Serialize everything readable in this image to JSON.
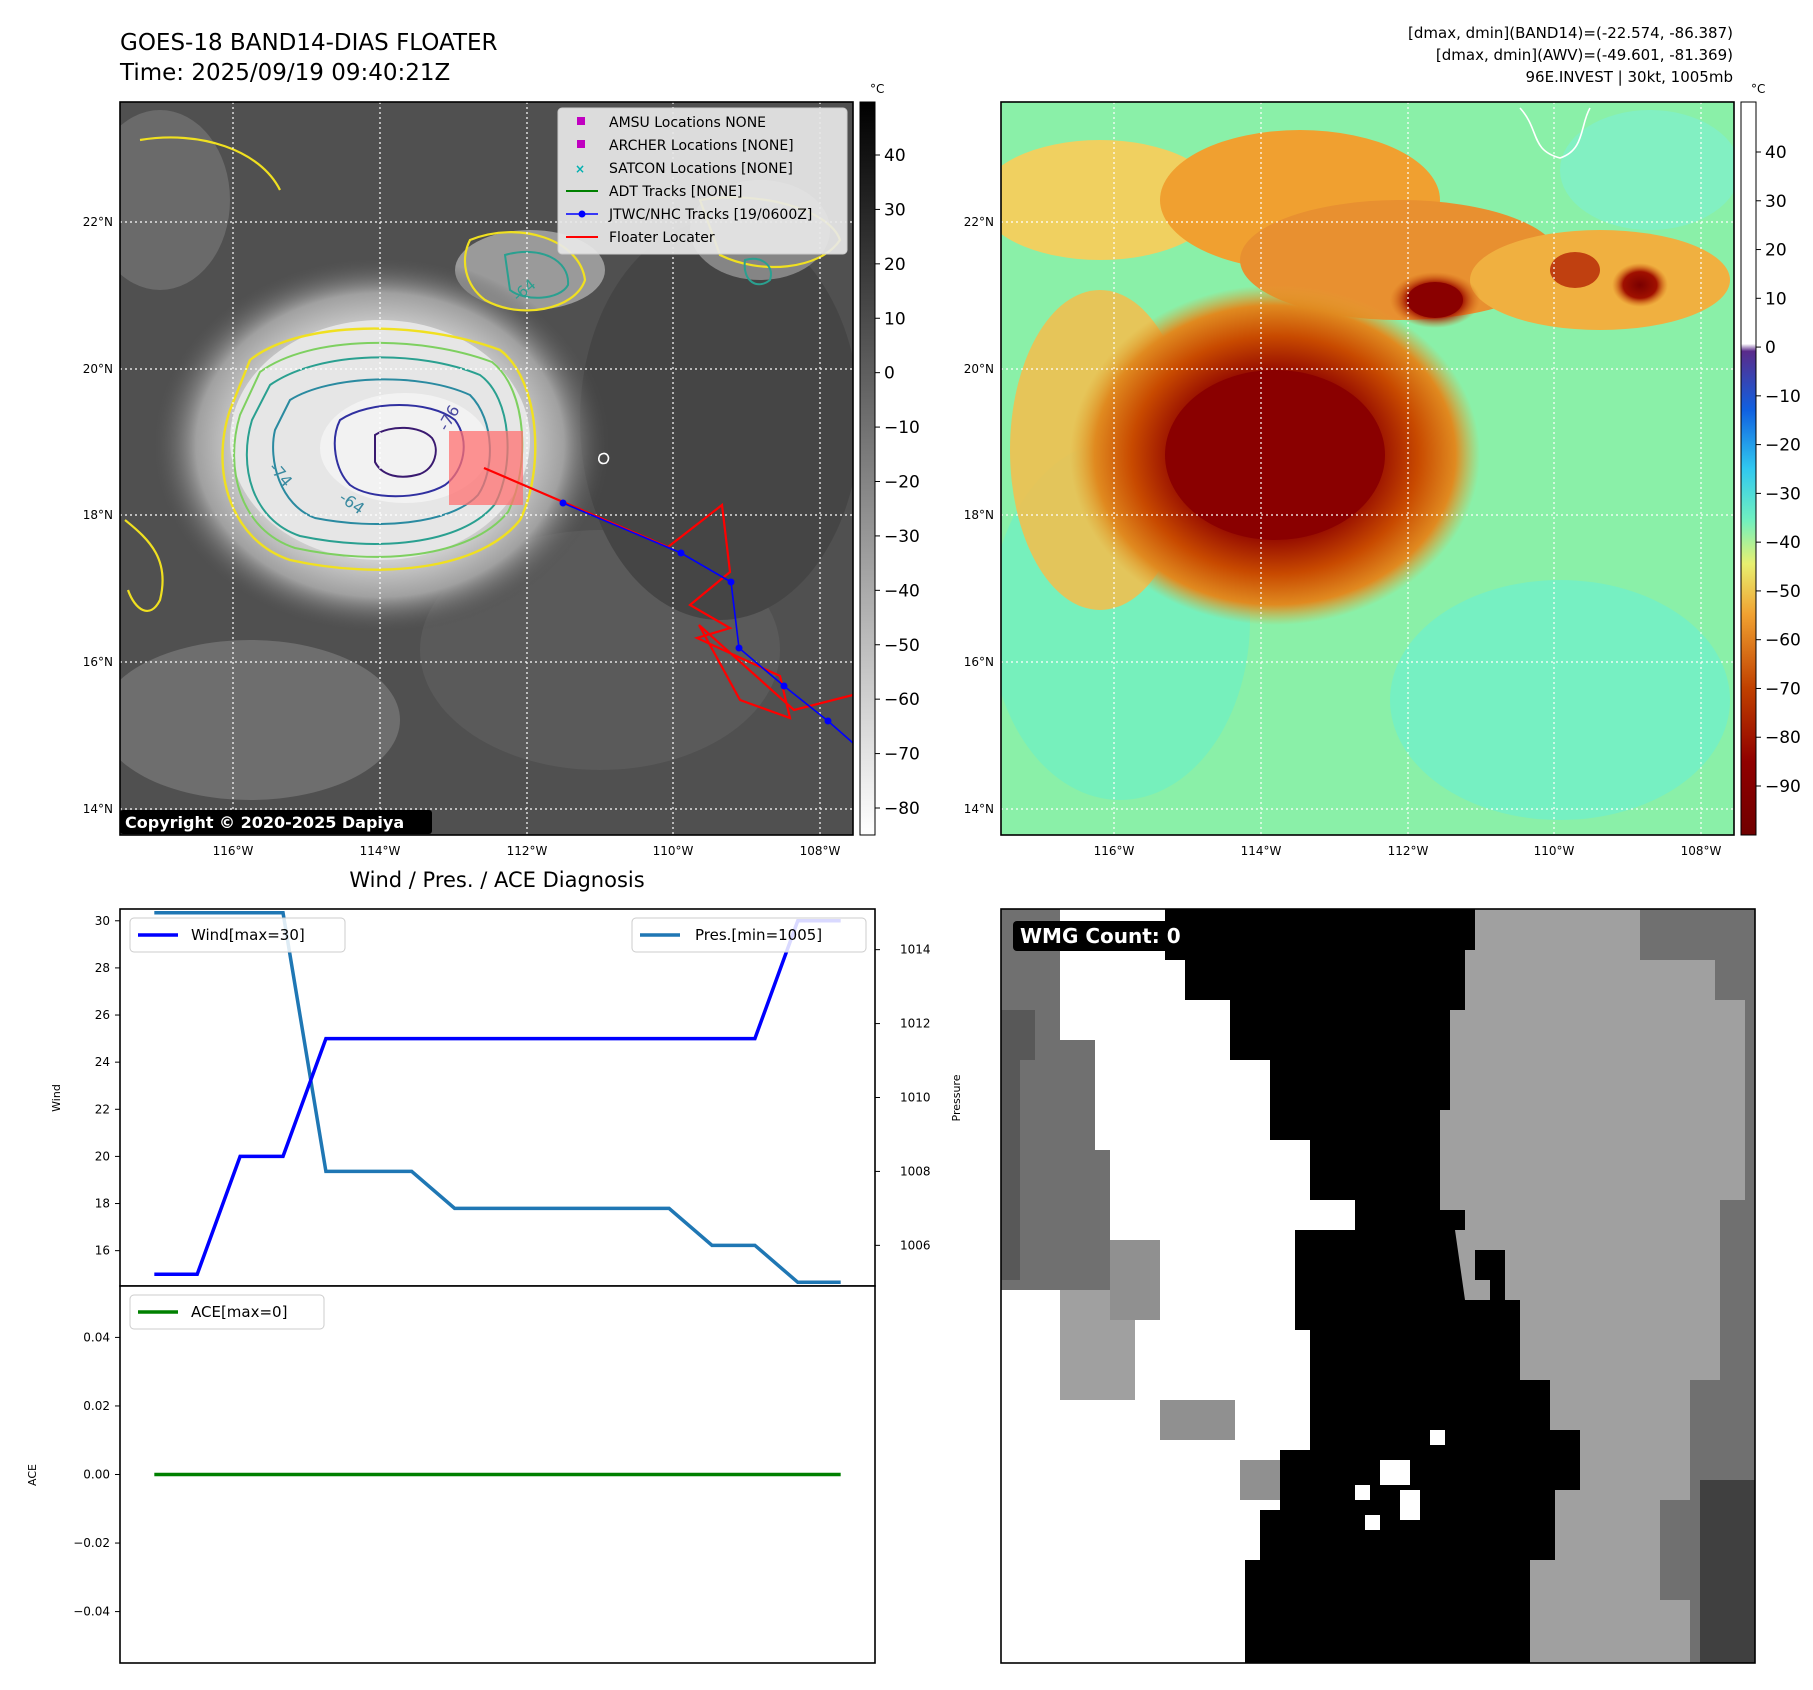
{
  "header": {
    "title_line1": "GOES-18 BAND14-DIAS FLOATER",
    "title_line2": "Time: 2025/09/19 09:40:21Z",
    "info_line1": "[dmax, dmin](BAND14)=(-22.574, -86.387)",
    "info_line2": "[dmax, dmin](AWV)=(-49.601, -81.369)",
    "info_line3": "96E.INVEST | 30kt, 1005mb"
  },
  "map_axes": {
    "lat_labels": [
      "22°N",
      "20°N",
      "18°N",
      "16°N",
      "14°N"
    ],
    "lon_labels": [
      "116°W",
      "114°W",
      "112°W",
      "110°W",
      "108°W"
    ]
  },
  "ir_panel": {
    "copyright": "Copyright © 2020-2025 Dapiya",
    "colorbar_unit": "°C",
    "colorbar_ticks": [
      "40",
      "30",
      "20",
      "10",
      "0",
      "−10",
      "−20",
      "−30",
      "−40",
      "−50",
      "−60",
      "−70",
      "−80"
    ],
    "contour_labels": [
      "-76",
      "-74",
      "-64",
      "-64"
    ],
    "legend": [
      {
        "label": "AMSU Locations NONE",
        "marker": "square",
        "color": "#c000c0"
      },
      {
        "label": "ARCHER Locations [NONE]",
        "marker": "square",
        "color": "#c000c0"
      },
      {
        "label": "SATCON Locations [NONE]",
        "marker": "x",
        "color": "#00b0b0"
      },
      {
        "label": "ADT Tracks [NONE]",
        "marker": "line",
        "color": "#008000"
      },
      {
        "label": "JTWC/NHC Tracks [19/0600Z]",
        "marker": "line-dot",
        "color": "#0000ff"
      },
      {
        "label": "Floater Locater",
        "marker": "line",
        "color": "#ff0000"
      }
    ]
  },
  "wv_panel": {
    "colorbar_unit": "°C",
    "colorbar_ticks": [
      "40",
      "30",
      "20",
      "10",
      "0",
      "−10",
      "−20",
      "−30",
      "−40",
      "−50",
      "−60",
      "−70",
      "−80",
      "−90"
    ]
  },
  "diagnosis": {
    "title": "Wind / Pres. / ACE Diagnosis",
    "wind_legend": "Wind[max=30]",
    "pres_legend": "Pres.[min=1005]",
    "ace_legend": "ACE[max=0]",
    "wind_ylabel": "Wind",
    "pres_ylabel": "Pressure",
    "ace_ylabel": "ACE",
    "wind_ticks": [
      "30",
      "28",
      "26",
      "24",
      "22",
      "20",
      "18",
      "16"
    ],
    "pres_ticks": [
      "1014",
      "1012",
      "1010",
      "1008",
      "1006"
    ],
    "ace_ticks": [
      "0.04",
      "0.02",
      "0.00",
      "−0.02",
      "−0.04"
    ]
  },
  "wmg_panel": {
    "label": "WMG Count: 0"
  },
  "chart_data": [
    {
      "type": "line",
      "x": [
        0,
        1,
        2,
        3,
        4,
        5,
        6,
        7,
        8,
        9,
        10,
        11,
        12,
        13,
        14,
        15,
        16
      ],
      "series": [
        {
          "name": "Wind[max=30]",
          "axis": "left",
          "color": "#0000ff",
          "values": [
            15,
            15,
            20,
            20,
            25,
            25,
            25,
            25,
            25,
            25,
            25,
            25,
            25,
            25,
            25,
            30,
            30
          ]
        },
        {
          "name": "Pres.[min=1005]",
          "axis": "right",
          "color": "#1f77b4",
          "values": [
            1015,
            1015,
            1015,
            1015,
            1008,
            1008,
            1008,
            1007,
            1007,
            1007,
            1007,
            1007,
            1007,
            1006,
            1006,
            1005,
            1005
          ]
        }
      ],
      "ylim_left": [
        14.5,
        30.5
      ],
      "ylim_right": [
        1004.9,
        1015.1
      ],
      "ylabel": "Wind",
      "ylabel_right": "Pressure",
      "legend": "top-left / top-right"
    },
    {
      "type": "line",
      "x": [
        0,
        1,
        2,
        3,
        4,
        5,
        6,
        7,
        8,
        9,
        10,
        11,
        12,
        13,
        14,
        15,
        16
      ],
      "series": [
        {
          "name": "ACE[max=0]",
          "color": "#008000",
          "values": [
            0,
            0,
            0,
            0,
            0,
            0,
            0,
            0,
            0,
            0,
            0,
            0,
            0,
            0,
            0,
            0,
            0
          ]
        }
      ],
      "ylim": [
        -0.055,
        0.055
      ],
      "ylabel": "ACE",
      "legend": "top-left"
    }
  ],
  "colors": {
    "wind": "#0000ff",
    "pressure": "#1f77b4",
    "ace": "#008000",
    "floater": "#ff0000",
    "track": "#0000ff"
  }
}
